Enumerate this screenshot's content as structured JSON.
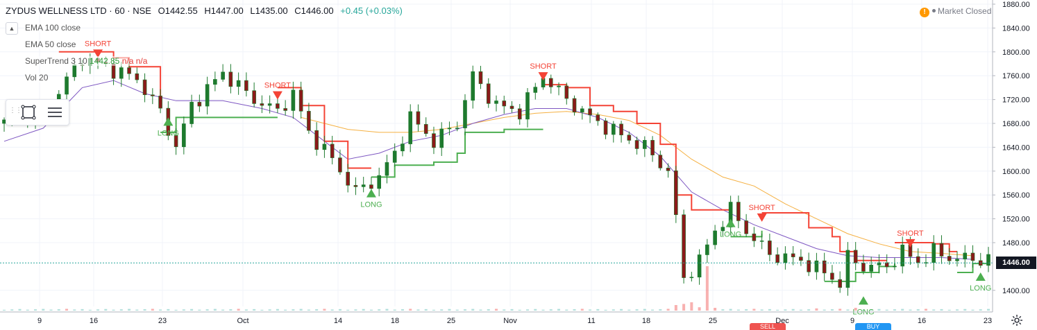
{
  "header": {
    "symbol": "ZYDUS WELLNESS LTD · 60 · NSE",
    "open": "O1442.55",
    "high": "H1447.00",
    "low": "L1435.00",
    "close": "C1446.00",
    "change": "+0.45 (+0.03%)"
  },
  "legend": {
    "ema100": "EMA 100 close",
    "ema50": "EMA 50 close",
    "supertrend_label": "SuperTrend 3 10",
    "supertrend_value": "1442.85",
    "supertrend_na": "n/a n/a",
    "vol": "Vol 20"
  },
  "status": {
    "market": "Market Closed",
    "warning_icon": "warning-icon"
  },
  "last_price": "1446.00",
  "colors": {
    "up": "#26a69a",
    "down": "#ef5350",
    "candle": "#1e7a2e",
    "supertrend_up": "#4caf50",
    "supertrend_down": "#f44336",
    "ema50": "#7e57c2",
    "ema100": "#f5b041",
    "grid": "#f0f3fa"
  },
  "chart_data": {
    "type": "candlestick",
    "y_axis": {
      "min": 1380,
      "max": 1880,
      "ticks": [
        1880,
        1840,
        1800,
        1760,
        1720,
        1680,
        1640,
        1600,
        1560,
        1520,
        1480,
        1446,
        1400
      ]
    },
    "x_axis": {
      "ticks": [
        "9",
        "16",
        "23",
        "Oct",
        "14",
        "18",
        "25",
        "Nov",
        "11",
        "18",
        "25",
        "Dec",
        "9",
        "16",
        "23"
      ]
    },
    "close_path": [
      [
        0,
        1680
      ],
      [
        6,
        1715
      ],
      [
        10,
        1790
      ],
      [
        14,
        1770
      ],
      [
        17,
        1755
      ],
      [
        20,
        1700
      ],
      [
        22,
        1640
      ],
      [
        24,
        1710
      ],
      [
        28,
        1765
      ],
      [
        32,
        1720
      ],
      [
        35,
        1700
      ],
      [
        37,
        1730
      ],
      [
        39,
        1665
      ],
      [
        42,
        1620
      ],
      [
        45,
        1565
      ],
      [
        48,
        1590
      ],
      [
        50,
        1630
      ],
      [
        52,
        1690
      ],
      [
        55,
        1650
      ],
      [
        58,
        1680
      ],
      [
        60,
        1760
      ],
      [
        63,
        1710
      ],
      [
        66,
        1700
      ],
      [
        69,
        1760
      ],
      [
        72,
        1720
      ],
      [
        75,
        1690
      ],
      [
        79,
        1660
      ],
      [
        82,
        1640
      ],
      [
        85,
        1600
      ],
      [
        86,
        1520
      ],
      [
        87,
        1420
      ],
      [
        89,
        1450
      ],
      [
        91,
        1500
      ],
      [
        93,
        1535
      ],
      [
        95,
        1500
      ],
      [
        98,
        1460
      ],
      [
        102,
        1450
      ],
      [
        105,
        1430
      ],
      [
        107,
        1412
      ],
      [
        108,
        1455
      ],
      [
        110,
        1440
      ],
      [
        113,
        1440
      ],
      [
        115,
        1465
      ],
      [
        117,
        1448
      ],
      [
        119,
        1465
      ],
      [
        121,
        1455
      ],
      [
        124,
        1452
      ]
    ],
    "supertrend": [
      {
        "trend": "down",
        "points": [
          [
            7,
            1800
          ],
          [
            12,
            1800
          ],
          [
            14,
            1790
          ],
          [
            16,
            1775
          ],
          [
            20,
            1720
          ]
        ]
      },
      {
        "trend": "up",
        "points": [
          [
            20,
            1665
          ],
          [
            22,
            1690
          ],
          [
            30,
            1690
          ],
          [
            35,
            1690
          ]
        ]
      },
      {
        "trend": "down",
        "points": [
          [
            35,
            1740
          ],
          [
            38,
            1710
          ],
          [
            41,
            1650
          ],
          [
            44,
            1605
          ],
          [
            47,
            1605
          ]
        ]
      },
      {
        "trend": "up",
        "points": [
          [
            47,
            1590
          ],
          [
            50,
            1610
          ],
          [
            55,
            1615
          ],
          [
            58,
            1630
          ],
          [
            59,
            1665
          ],
          [
            64,
            1670
          ],
          [
            69,
            1670
          ]
        ]
      },
      {
        "trend": "down",
        "points": [
          [
            69,
            1745
          ],
          [
            72,
            1740
          ],
          [
            75,
            1710
          ],
          [
            78,
            1700
          ],
          [
            81,
            1680
          ],
          [
            84,
            1645
          ],
          [
            86,
            1560
          ],
          [
            88,
            1535
          ],
          [
            93,
            1535
          ]
        ]
      },
      {
        "trend": "up",
        "points": [
          [
            93,
            1490
          ],
          [
            95,
            1490
          ],
          [
            97,
            1500
          ]
        ]
      },
      {
        "trend": "down",
        "points": [
          [
            97,
            1530
          ],
          [
            100,
            1530
          ],
          [
            103,
            1505
          ],
          [
            106,
            1490
          ],
          [
            107,
            1465
          ],
          [
            109,
            1450
          ],
          [
            111,
            1450
          ],
          [
            113,
            1450
          ]
        ]
      },
      {
        "trend": "up",
        "points": [
          [
            105,
            1415
          ],
          [
            107,
            1415
          ],
          [
            109,
            1430
          ],
          [
            112,
            1440
          ],
          [
            114,
            1445
          ]
        ]
      },
      {
        "trend": "down",
        "points": [
          [
            114,
            1480
          ],
          [
            119,
            1478
          ],
          [
            121,
            1465
          ],
          [
            122,
            1465
          ]
        ]
      },
      {
        "trend": "up",
        "points": [
          [
            122,
            1430
          ],
          [
            124,
            1445
          ],
          [
            126,
            1445
          ]
        ]
      }
    ],
    "ema50": [
      [
        0,
        1650
      ],
      [
        5,
        1672
      ],
      [
        10,
        1740
      ],
      [
        14,
        1752
      ],
      [
        18,
        1730
      ],
      [
        22,
        1718
      ],
      [
        28,
        1718
      ],
      [
        33,
        1705
      ],
      [
        37,
        1690
      ],
      [
        40,
        1660
      ],
      [
        44,
        1620
      ],
      [
        48,
        1630
      ],
      [
        52,
        1650
      ],
      [
        56,
        1660
      ],
      [
        60,
        1680
      ],
      [
        64,
        1695
      ],
      [
        68,
        1705
      ],
      [
        72,
        1705
      ],
      [
        76,
        1690
      ],
      [
        80,
        1665
      ],
      [
        84,
        1625
      ],
      [
        88,
        1565
      ],
      [
        92,
        1535
      ],
      [
        96,
        1510
      ],
      [
        100,
        1490
      ],
      [
        104,
        1470
      ],
      [
        108,
        1458
      ],
      [
        112,
        1455
      ],
      [
        116,
        1455
      ],
      [
        120,
        1455
      ],
      [
        124,
        1452
      ]
    ],
    "ema100": [
      [
        38,
        1690
      ],
      [
        44,
        1670
      ],
      [
        48,
        1665
      ],
      [
        52,
        1665
      ],
      [
        56,
        1670
      ],
      [
        60,
        1680
      ],
      [
        64,
        1690
      ],
      [
        68,
        1697
      ],
      [
        72,
        1700
      ],
      [
        76,
        1695
      ],
      [
        80,
        1685
      ],
      [
        84,
        1660
      ],
      [
        88,
        1620
      ],
      [
        92,
        1590
      ],
      [
        96,
        1575
      ],
      [
        100,
        1545
      ],
      [
        104,
        1520
      ],
      [
        108,
        1495
      ],
      [
        112,
        1478
      ],
      [
        116,
        1465
      ],
      [
        120,
        1462
      ],
      [
        124,
        1458
      ]
    ],
    "signals": [
      {
        "type": "SHORT",
        "x": 12,
        "price": 1790
      },
      {
        "type": "LONG",
        "x": 21,
        "price": 1690
      },
      {
        "type": "SHORT",
        "x": 35,
        "price": 1720
      },
      {
        "type": "LONG",
        "x": 47,
        "price": 1570
      },
      {
        "type": "SHORT",
        "x": 69,
        "price": 1752
      },
      {
        "type": "LONG",
        "x": 93,
        "price": 1520
      },
      {
        "type": "SHORT",
        "x": 97,
        "price": 1515
      },
      {
        "type": "LONG",
        "x": 110,
        "price": 1390
      },
      {
        "type": "SHORT",
        "x": 116,
        "price": 1472
      },
      {
        "type": "LONG",
        "x": 125,
        "price": 1430
      }
    ],
    "volume_spikes": [
      [
        86,
        0.1
      ],
      [
        87,
        0.12
      ],
      [
        88,
        0.15
      ],
      [
        89,
        0.06
      ],
      [
        90,
        0.8
      ],
      [
        91,
        0.05
      ],
      [
        104,
        0.04
      ],
      [
        109,
        0.05
      ]
    ],
    "grid": true
  },
  "bottom": {
    "sell_label": "SELL",
    "buy_label": "BUY"
  }
}
